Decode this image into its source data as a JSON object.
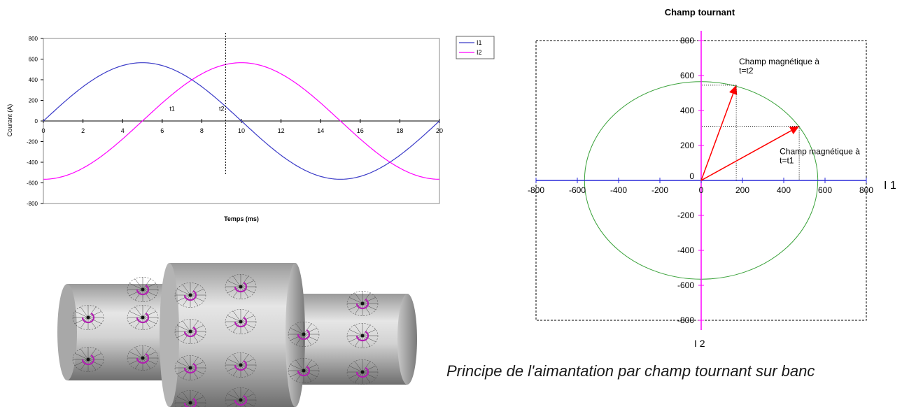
{
  "caption": "Principe de l'aimantation par champ tournant sur banc",
  "chart_data": [
    {
      "type": "line",
      "title": "",
      "xlabel": "Temps (ms)",
      "ylabel": "Courant (A)",
      "xlim": [
        0,
        20
      ],
      "ylim": [
        -800,
        800
      ],
      "xticks": [
        0,
        2,
        4,
        6,
        8,
        10,
        12,
        14,
        16,
        18,
        20
      ],
      "yticks": [
        800,
        600,
        400,
        200,
        0,
        -200,
        -400,
        -600,
        -800
      ],
      "amplitude": 565,
      "period": 20,
      "grid": false,
      "legend": "top-right",
      "series": [
        {
          "name": "I1",
          "color": "#3b3bc8",
          "phase_ms": 0
        },
        {
          "name": "I2",
          "color": "#ff00ff",
          "phase_ms": -5
        }
      ],
      "markers": [
        {
          "label": "t1",
          "x": 6.5,
          "y": 100
        },
        {
          "label": "t2",
          "x": 9.0,
          "y": 100
        }
      ],
      "vline_x": 9.2
    },
    {
      "type": "scatter",
      "title": "Champ tournant",
      "xlabel": "I 1",
      "ylabel": "I 2",
      "xlim": [
        -800,
        800
      ],
      "ylim": [
        -800,
        800
      ],
      "xticks": [
        -800,
        -600,
        -400,
        -200,
        0,
        200,
        400,
        600,
        800
      ],
      "yticks": [
        800,
        600,
        400,
        200,
        0,
        -200,
        -400,
        -600,
        -800
      ],
      "circle_radius": 565,
      "circle_color": "#3aa23a",
      "x_axis_color": "#2a2ad8",
      "y_axis_color": "#ff00ff",
      "vectors": [
        {
          "label": "Champ magnétique à t=t2",
          "x": 170,
          "y": 545,
          "color": "#ff0000"
        },
        {
          "label": "Champ magnétique à t=t1",
          "x": 475,
          "y": 310,
          "color": "#ff0000"
        }
      ]
    }
  ]
}
